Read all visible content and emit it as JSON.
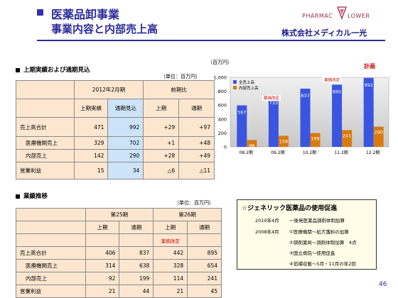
{
  "header": {
    "title": "医薬品卸事業",
    "subtitle": "事業内容と内部売上高",
    "logo_text_left": "PHARMAC",
    "logo_text_right": "LOWER",
    "company": "株式会社メディカル一光"
  },
  "section1": {
    "title": "上期実績および通期見込",
    "unit": "（単位：百万円）",
    "col_group1": "2012年2月期",
    "col_group2": "前期比",
    "sub_headers": [
      "上期実績",
      "通期見込",
      "上期",
      "通期"
    ],
    "rows": [
      {
        "label": "売上高合計",
        "values": [
          "471",
          "992",
          "+29",
          "+97"
        ]
      },
      {
        "label": "医療機関売上",
        "values": [
          "329",
          "702",
          "+1",
          "+48"
        ]
      },
      {
        "label": "内部売上",
        "values": [
          "142",
          "290",
          "+28",
          "+49"
        ]
      },
      {
        "label": "営業利益",
        "values": [
          "15",
          "34",
          "△6",
          "△11"
        ]
      }
    ]
  },
  "section2": {
    "title": "業績推移",
    "unit": "（単位：百万円）",
    "col_group1": "第25期",
    "col_group2": "第26期",
    "sub_headers": [
      "上期",
      "通期",
      "上期",
      "通期"
    ],
    "note": "薬価改定",
    "rows": [
      {
        "label": "売上高合計",
        "values": [
          "406",
          "837",
          "442",
          "895"
        ]
      },
      {
        "label": "医療機関売上",
        "values": [
          "314",
          "638",
          "328",
          "654"
        ]
      },
      {
        "label": "内部売上",
        "values": [
          "92",
          "199",
          "114",
          "241"
        ]
      },
      {
        "label": "営業利益",
        "values": [
          "21",
          "44",
          "21",
          "45"
        ]
      }
    ]
  },
  "chart_data": {
    "type": "bar",
    "unit_label": "（百万円）",
    "categories": [
      "08.2期",
      "09.2期",
      "10.2期",
      "11.2期",
      "12.2期"
    ],
    "series": [
      {
        "name": "全売上高",
        "values": [
          597,
          733,
          837,
          895,
          992
        ],
        "color": "#3a55e0"
      },
      {
        "name": "内部売上高",
        "values": [
          98,
          158,
          199,
          241,
          290
        ],
        "color": "#d87a10"
      }
    ],
    "y_ticks": [
      "0",
      "200",
      "400",
      "600",
      "800",
      "1,000"
    ],
    "ylim": [
      0,
      1000
    ],
    "annotations": [
      "薬価改定",
      "薬価改定"
    ],
    "plan_label": "計画",
    "legend_position": "top-left"
  },
  "generic_box": {
    "title": "☆ジェネリック医薬品の使用促進",
    "lines": [
      {
        "date": "2010年4月",
        "text": "～後発医薬品調剤体制加算"
      },
      {
        "date": "2008年4月",
        "text": "①医療機関～処方箋料の加算"
      },
      {
        "date": "",
        "text": "②調剤薬局～調剤体制加算　4点"
      },
      {
        "date": "",
        "text": "③国立病院～使用促進"
      },
      {
        "date": "",
        "text": "④追補収載～5月・11月の年2回"
      }
    ]
  },
  "page_number": "46"
}
